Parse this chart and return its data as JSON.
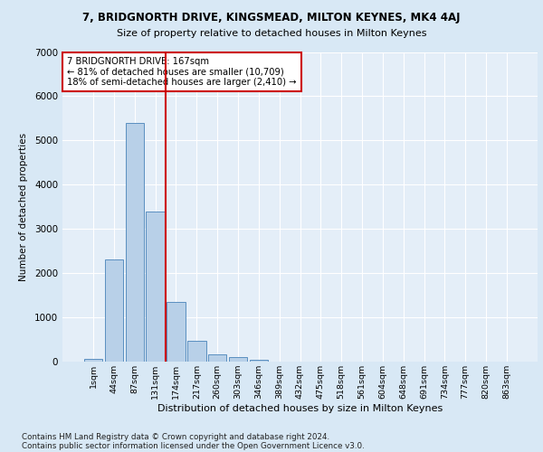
{
  "title1": "7, BRIDGNORTH DRIVE, KINGSMEAD, MILTON KEYNES, MK4 4AJ",
  "title2": "Size of property relative to detached houses in Milton Keynes",
  "xlabel": "Distribution of detached houses by size in Milton Keynes",
  "ylabel": "Number of detached properties",
  "categories": [
    "1sqm",
    "44sqm",
    "87sqm",
    "131sqm",
    "174sqm",
    "217sqm",
    "260sqm",
    "303sqm",
    "346sqm",
    "389sqm",
    "432sqm",
    "475sqm",
    "518sqm",
    "561sqm",
    "604sqm",
    "648sqm",
    "691sqm",
    "734sqm",
    "777sqm",
    "820sqm",
    "863sqm"
  ],
  "values": [
    70,
    2300,
    5400,
    3400,
    1350,
    480,
    170,
    100,
    50,
    0,
    0,
    0,
    0,
    0,
    0,
    0,
    0,
    0,
    0,
    0,
    0
  ],
  "bar_color": "#b8d0e8",
  "bar_edge_color": "#5a8fc0",
  "vline_color": "#cc0000",
  "annotation_line1": "7 BRIDGNORTH DRIVE: 167sqm",
  "annotation_line2": "← 81% of detached houses are smaller (10,709)",
  "annotation_line3": "18% of semi-detached houses are larger (2,410) →",
  "annotation_box_color": "#ffffff",
  "annotation_box_edge": "#cc0000",
  "ylim": [
    0,
    7000
  ],
  "yticks": [
    0,
    1000,
    2000,
    3000,
    4000,
    5000,
    6000,
    7000
  ],
  "footer_line1": "Contains HM Land Registry data © Crown copyright and database right 2024.",
  "footer_line2": "Contains public sector information licensed under the Open Government Licence v3.0.",
  "bg_color": "#d8e8f5",
  "plot_bg_color": "#e4eef8"
}
